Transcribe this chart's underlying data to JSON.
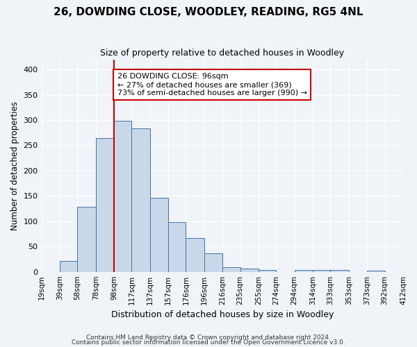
{
  "title": "26, DOWDING CLOSE, WOODLEY, READING, RG5 4NL",
  "subtitle": "Size of property relative to detached houses in Woodley",
  "xlabel": "Distribution of detached houses by size in Woodley",
  "ylabel": "Number of detached properties",
  "bar_color": "#c8d8e8",
  "bar_edge_color": "#4472a8",
  "background_color": "#f0f4f8",
  "grid_color": "#ffffff",
  "bin_edges": [
    19,
    39,
    58,
    78,
    98,
    117,
    137,
    157,
    176,
    196,
    216,
    235,
    255,
    274,
    294,
    314,
    333,
    353,
    373,
    392,
    412
  ],
  "bin_labels": [
    "19sqm",
    "39sqm",
    "58sqm",
    "78sqm",
    "98sqm",
    "117sqm",
    "137sqm",
    "157sqm",
    "176sqm",
    "196sqm",
    "216sqm",
    "235sqm",
    "255sqm",
    "274sqm",
    "294sqm",
    "314sqm",
    "333sqm",
    "353sqm",
    "373sqm",
    "392sqm",
    "412sqm"
  ],
  "heights": [
    0,
    22,
    128,
    264,
    299,
    284,
    146,
    98,
    67,
    37,
    9,
    6,
    4,
    0,
    4,
    4,
    3,
    0,
    2,
    0
  ],
  "vline_x": 98,
  "vline_color": "#cc0000",
  "ylim": [
    0,
    420
  ],
  "yticks": [
    0,
    50,
    100,
    150,
    200,
    250,
    300,
    350,
    400
  ],
  "annotation_title": "26 DOWDING CLOSE: 96sqm",
  "annotation_line1": "← 27% of detached houses are smaller (369)",
  "annotation_line2": "73% of semi-detached houses are larger (990) →",
  "annotation_box_color": "#ffffff",
  "annotation_box_edge_color": "#cc0000",
  "footer1": "Contains HM Land Registry data © Crown copyright and database right 2024.",
  "footer2": "Contains public sector information licensed under the Open Government Licence v3.0."
}
